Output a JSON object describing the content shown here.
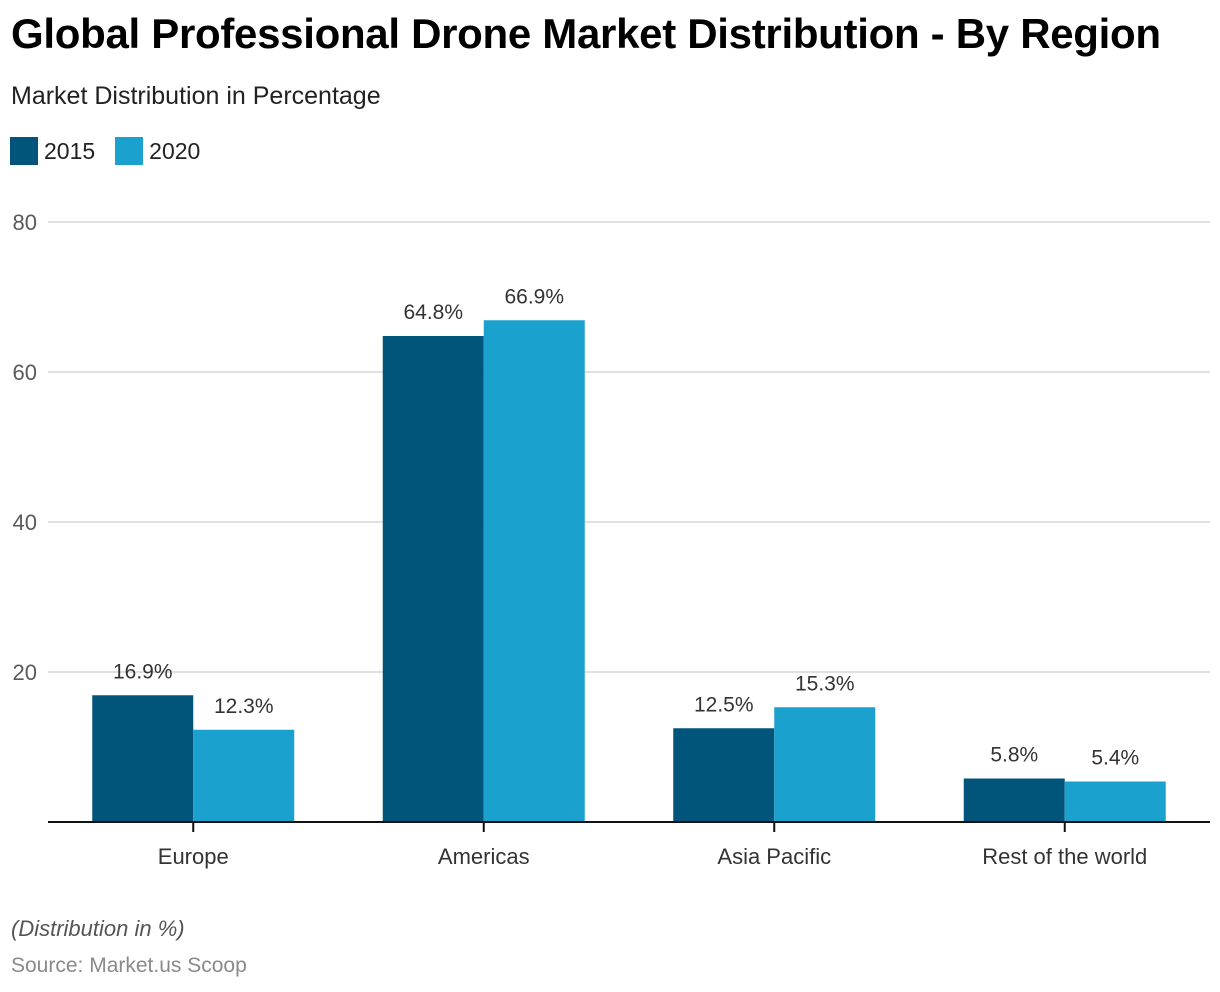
{
  "chart_data": {
    "type": "bar",
    "title": "Global Professional Drone Market Distribution - By Region",
    "subtitle": "Market Distribution in Percentage",
    "categories": [
      "Europe",
      "Americas",
      "Asia Pacific",
      "Rest of the world"
    ],
    "series": [
      {
        "name": "2015",
        "color": "#02557a",
        "values": [
          16.9,
          64.8,
          12.5,
          5.8
        ],
        "labels": [
          "16.9%",
          "64.8%",
          "12.5%",
          "5.8%"
        ]
      },
      {
        "name": "2020",
        "color": "#1aa1ce",
        "values": [
          12.3,
          66.9,
          15.3,
          5.4
        ],
        "labels": [
          "12.3%",
          "66.9%",
          "15.3%",
          "5.4%"
        ]
      }
    ],
    "xlabel": "",
    "ylabel": "",
    "ylim": [
      0,
      80
    ],
    "yticks": [
      "0",
      "20",
      "40",
      "60",
      "80"
    ],
    "grid": true,
    "legend_position": "top-left",
    "note": "(Distribution in %)",
    "source": "Source: Market.us Scoop"
  }
}
